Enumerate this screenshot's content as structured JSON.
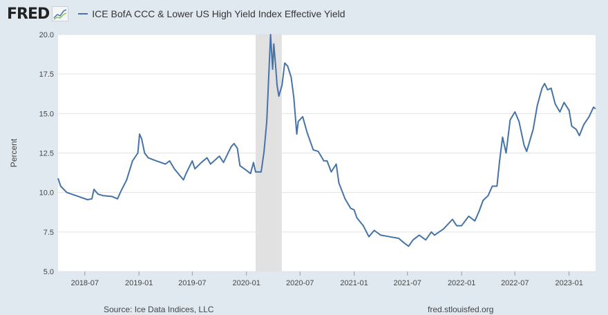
{
  "header": {
    "logo": "FRED",
    "logo_icon": "chart-line-icon"
  },
  "chart_data": {
    "type": "line",
    "title": "",
    "ylabel": "Percent",
    "xlabel": "",
    "ylim": [
      5,
      20
    ],
    "xlim": [
      "2018-04-01",
      "2023-04-01"
    ],
    "yticks": [
      "5.0",
      "7.5",
      "10.0",
      "12.5",
      "15.0",
      "17.5",
      "20.0"
    ],
    "xticks": [
      "2018-07",
      "2019-01",
      "2019-07",
      "2020-01",
      "2020-07",
      "2021-01",
      "2021-07",
      "2022-01",
      "2022-07",
      "2023-01"
    ],
    "grid": true,
    "legend_placement": "top-left",
    "line_color": "#4572a7",
    "recession_shading": [
      [
        "2020-02-01",
        "2020-04-30"
      ]
    ],
    "series": [
      {
        "name": "ICE BofA CCC & Lower US High Yield Index Effective Yield",
        "points": [
          [
            "2018-04-01",
            10.9
          ],
          [
            "2018-04-10",
            10.4
          ],
          [
            "2018-05-01",
            10.0
          ],
          [
            "2018-06-01",
            9.8
          ],
          [
            "2018-07-10",
            9.55
          ],
          [
            "2018-07-25",
            9.6
          ],
          [
            "2018-08-01",
            10.2
          ],
          [
            "2018-08-15",
            9.9
          ],
          [
            "2018-09-01",
            9.8
          ],
          [
            "2018-10-01",
            9.75
          ],
          [
            "2018-10-20",
            9.6
          ],
          [
            "2018-11-01",
            10.1
          ],
          [
            "2018-11-20",
            10.8
          ],
          [
            "2018-12-10",
            12.0
          ],
          [
            "2018-12-28",
            12.5
          ],
          [
            "2019-01-03",
            13.7
          ],
          [
            "2019-01-10",
            13.4
          ],
          [
            "2019-01-20",
            12.5
          ],
          [
            "2019-02-01",
            12.2
          ],
          [
            "2019-03-01",
            12.0
          ],
          [
            "2019-04-01",
            11.8
          ],
          [
            "2019-04-15",
            12.0
          ],
          [
            "2019-05-01",
            11.5
          ],
          [
            "2019-06-01",
            10.8
          ],
          [
            "2019-06-10",
            11.2
          ],
          [
            "2019-07-01",
            12.0
          ],
          [
            "2019-07-10",
            11.5
          ],
          [
            "2019-08-01",
            11.9
          ],
          [
            "2019-08-20",
            12.2
          ],
          [
            "2019-09-01",
            11.8
          ],
          [
            "2019-10-01",
            12.3
          ],
          [
            "2019-10-15",
            11.9
          ],
          [
            "2019-11-10",
            12.9
          ],
          [
            "2019-11-20",
            13.1
          ],
          [
            "2019-12-01",
            12.8
          ],
          [
            "2019-12-10",
            11.7
          ],
          [
            "2020-01-01",
            11.4
          ],
          [
            "2020-01-15",
            11.2
          ],
          [
            "2020-01-25",
            11.9
          ],
          [
            "2020-02-01",
            11.3
          ],
          [
            "2020-02-20",
            11.3
          ],
          [
            "2020-03-01",
            12.6
          ],
          [
            "2020-03-10",
            14.5
          ],
          [
            "2020-03-23",
            20.0
          ],
          [
            "2020-03-30",
            17.8
          ],
          [
            "2020-04-03",
            19.4
          ],
          [
            "2020-04-10",
            17.8
          ],
          [
            "2020-04-14",
            16.8
          ],
          [
            "2020-04-20",
            16.1
          ],
          [
            "2020-05-01",
            16.8
          ],
          [
            "2020-05-10",
            18.2
          ],
          [
            "2020-05-20",
            18.0
          ],
          [
            "2020-06-01",
            17.3
          ],
          [
            "2020-06-10",
            16.0
          ],
          [
            "2020-06-20",
            13.7
          ],
          [
            "2020-06-25",
            14.5
          ],
          [
            "2020-07-10",
            14.8
          ],
          [
            "2020-07-25",
            13.8
          ],
          [
            "2020-08-15",
            12.7
          ],
          [
            "2020-09-01",
            12.6
          ],
          [
            "2020-09-20",
            12.0
          ],
          [
            "2020-10-01",
            12.0
          ],
          [
            "2020-10-15",
            11.3
          ],
          [
            "2020-11-01",
            11.8
          ],
          [
            "2020-11-10",
            10.6
          ],
          [
            "2020-12-01",
            9.6
          ],
          [
            "2020-12-20",
            9.0
          ],
          [
            "2021-01-01",
            8.9
          ],
          [
            "2021-01-10",
            8.4
          ],
          [
            "2021-02-01",
            7.9
          ],
          [
            "2021-02-20",
            7.2
          ],
          [
            "2021-03-10",
            7.6
          ],
          [
            "2021-04-01",
            7.3
          ],
          [
            "2021-05-01",
            7.2
          ],
          [
            "2021-06-01",
            7.1
          ],
          [
            "2021-06-20",
            6.8
          ],
          [
            "2021-07-05",
            6.6
          ],
          [
            "2021-07-20",
            7.0
          ],
          [
            "2021-08-10",
            7.3
          ],
          [
            "2021-09-01",
            7.0
          ],
          [
            "2021-09-20",
            7.5
          ],
          [
            "2021-10-01",
            7.3
          ],
          [
            "2021-11-01",
            7.7
          ],
          [
            "2021-12-01",
            8.3
          ],
          [
            "2021-12-15",
            7.9
          ],
          [
            "2022-01-01",
            7.9
          ],
          [
            "2022-01-25",
            8.5
          ],
          [
            "2022-02-15",
            8.2
          ],
          [
            "2022-03-01",
            8.8
          ],
          [
            "2022-03-15",
            9.5
          ],
          [
            "2022-04-01",
            9.8
          ],
          [
            "2022-04-15",
            10.4
          ],
          [
            "2022-05-01",
            10.4
          ],
          [
            "2022-05-10",
            12.0
          ],
          [
            "2022-05-20",
            13.5
          ],
          [
            "2022-06-01",
            12.5
          ],
          [
            "2022-06-15",
            14.6
          ],
          [
            "2022-07-01",
            15.1
          ],
          [
            "2022-07-15",
            14.5
          ],
          [
            "2022-08-01",
            13.0
          ],
          [
            "2022-08-10",
            12.6
          ],
          [
            "2022-09-01",
            14.0
          ],
          [
            "2022-09-15",
            15.5
          ],
          [
            "2022-10-01",
            16.6
          ],
          [
            "2022-10-10",
            16.9
          ],
          [
            "2022-10-20",
            16.5
          ],
          [
            "2022-11-01",
            16.6
          ],
          [
            "2022-11-15",
            15.6
          ],
          [
            "2022-12-01",
            15.1
          ],
          [
            "2022-12-15",
            15.7
          ],
          [
            "2023-01-01",
            15.2
          ],
          [
            "2023-01-10",
            14.2
          ],
          [
            "2023-01-25",
            14.0
          ],
          [
            "2023-02-05",
            13.6
          ],
          [
            "2023-02-20",
            14.3
          ],
          [
            "2023-03-10",
            14.8
          ],
          [
            "2023-03-25",
            15.4
          ],
          [
            "2023-04-01",
            15.3
          ]
        ]
      }
    ]
  },
  "footer": {
    "source": "Source: Ice Data Indices, LLC",
    "site": "fred.stlouisfed.org"
  }
}
